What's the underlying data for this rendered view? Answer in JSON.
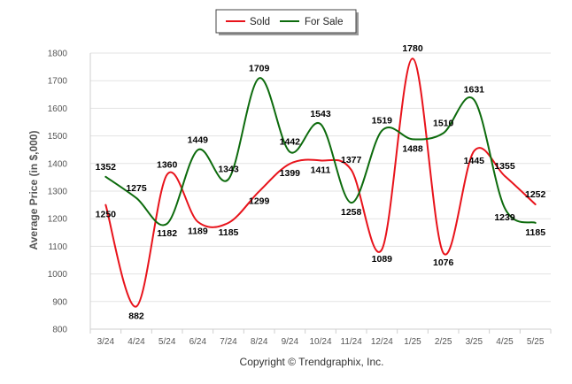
{
  "chart_data": {
    "type": "line",
    "smooth": true,
    "categories": [
      "3/24",
      "4/24",
      "5/24",
      "6/24",
      "7/24",
      "8/24",
      "9/24",
      "10/24",
      "11/24",
      "12/24",
      "1/25",
      "2/25",
      "3/25",
      "4/25",
      "5/25"
    ],
    "series": [
      {
        "name": "Sold",
        "color": "#e8131b",
        "values": [
          1250,
          882,
          1360,
          1189,
          1185,
          1299,
          1399,
          1411,
          1377,
          1089,
          1780,
          1076,
          1445,
          1355,
          1252
        ]
      },
      {
        "name": "For Sale",
        "color": "#0d6b0d",
        "values": [
          1352,
          1275,
          1182,
          1449,
          1343,
          1709,
          1442,
          1543,
          1258,
          1519,
          1488,
          1510,
          1631,
          1239,
          1185
        ]
      }
    ],
    "ylabel": "Average Price (in $,000)",
    "xlabel": "",
    "ylim": [
      800,
      1800
    ],
    "yticks": [
      800,
      900,
      1000,
      1100,
      1200,
      1300,
      1400,
      1500,
      1600,
      1700,
      1800
    ],
    "grid": true,
    "legend_position": "top-center",
    "data_labels": true
  },
  "credit": "Copyright © Trendgraphix, Inc."
}
